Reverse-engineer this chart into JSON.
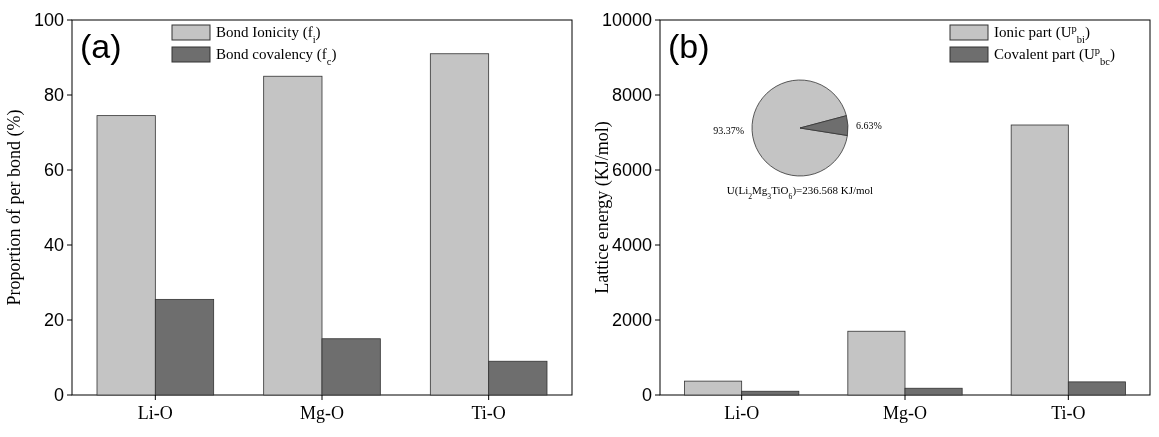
{
  "chart_data": [
    {
      "type": "bar",
      "categories": [
        "Li-O",
        "Mg-O",
        "Ti-O"
      ],
      "ylabel": "Proportion of per bond (%)",
      "ylim": [
        0,
        100
      ],
      "yticks": [
        0,
        20,
        40,
        60,
        80,
        100
      ],
      "legend": "top",
      "annotations": [
        "(a)"
      ],
      "series": [
        {
          "name": "Bond Ionicity (f$_{i}$)",
          "color": "#c4c4c4",
          "values": [
            74.5,
            85,
            91
          ]
        },
        {
          "name": "Bond covalency (f$_{c}$)",
          "color": "#6e6e6e",
          "values": [
            25.5,
            15,
            9
          ]
        }
      ]
    },
    {
      "type": "bar",
      "categories": [
        "Li-O",
        "Mg-O",
        "Ti-O"
      ],
      "ylabel": "Lattice energy (KJ/mol)",
      "ylim": [
        0,
        10000
      ],
      "yticks": [
        0,
        2000,
        4000,
        6000,
        8000,
        10000
      ],
      "legend": "top right",
      "annotations": [
        "(b)"
      ],
      "series": [
        {
          "name": "Ionic part (U$^{p}$$_{bi}$)",
          "color": "#c4c4c4",
          "values": [
            370,
            1700,
            7200
          ]
        },
        {
          "name": "Covalent part (U$^{p}$$_{bc}$)",
          "color": "#6e6e6e",
          "values": [
            100,
            180,
            350
          ]
        }
      ]
    },
    {
      "type": "pie",
      "categories": [
        null,
        null
      ],
      "values": [
        93.37,
        6.63
      ],
      "colors": [
        "#c4c4c4",
        "#6e6e6e"
      ],
      "value_labels": [
        "93.37%",
        "6.63%"
      ],
      "annotations": [
        "U(Li$_{2}$Mg$_{3}$TiO$_{6}$)=236.568 KJ/mol"
      ]
    }
  ]
}
